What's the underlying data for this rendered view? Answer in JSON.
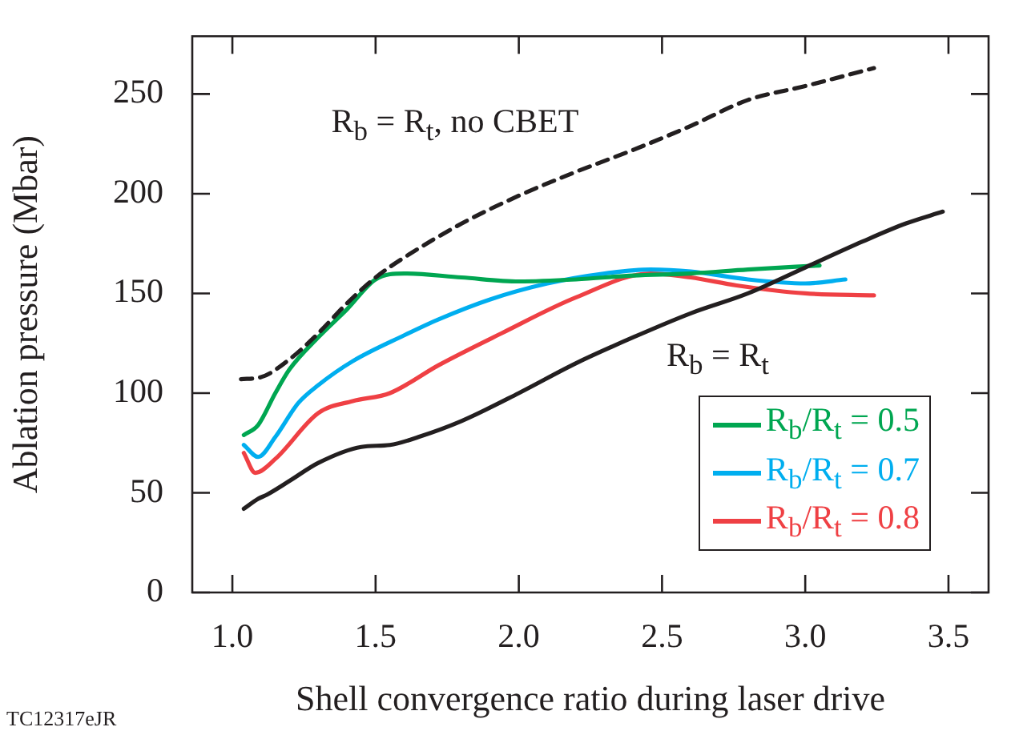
{
  "chart_data": {
    "type": "line",
    "xlabel": "Shell convergence ratio during laser drive",
    "ylabel": "Ablation pressure (Mbar)",
    "xlim": [
      0.86,
      3.64
    ],
    "ylim": [
      0,
      279
    ],
    "xticks": [
      {
        "value": 1,
        "label": "1.0"
      },
      {
        "value": 1.5,
        "label": "1.5"
      },
      {
        "value": 2,
        "label": "2.0"
      },
      {
        "value": 2.5,
        "label": "2.5"
      },
      {
        "value": 3,
        "label": "3.0"
      },
      {
        "value": 3.5,
        "label": "3.5"
      }
    ],
    "yticks": [
      0,
      50,
      100,
      150,
      200,
      250
    ],
    "grid": false,
    "legend": "bottom right",
    "marker": "none",
    "series": [
      {
        "color": "#231f20",
        "line_style": "dashed",
        "x": [
          1.03,
          1.1,
          1.2,
          1.3,
          1.4,
          1.5,
          1.6,
          1.8,
          2.0,
          2.2,
          2.4,
          2.6,
          2.8,
          3.0,
          3.24
        ],
        "values": [
          107,
          108,
          117,
          130,
          145,
          158,
          168,
          185,
          199,
          211,
          222,
          234,
          247,
          254,
          263
        ]
      },
      {
        "color": "#231f20",
        "line_style": "solid",
        "x": [
          1.04,
          1.09,
          1.12,
          1.2,
          1.3,
          1.45,
          1.55,
          1.65,
          1.8,
          2.0,
          2.2,
          2.4,
          2.6,
          2.8,
          3.0,
          3.2,
          3.35,
          3.48
        ],
        "values": [
          42,
          47,
          49,
          56,
          65,
          73,
          74,
          78,
          86,
          100,
          115,
          128,
          140,
          150,
          163,
          176,
          185,
          191
        ]
      },
      {
        "name": "R$_{b}$/R$_{t}$ = 0.5",
        "color": "#00a651",
        "line_style": "solid",
        "x": [
          1.04,
          1.09,
          1.15,
          1.2,
          1.3,
          1.4,
          1.5,
          1.6,
          1.8,
          2.0,
          2.2,
          2.4,
          2.6,
          2.8,
          3.05
        ],
        "values": [
          79,
          84,
          100,
          112,
          128,
          142,
          157,
          160,
          158,
          156,
          157,
          159,
          160,
          162,
          164
        ]
      },
      {
        "name": "R$_{b}$/R$_{t}$ = 0.7",
        "color": "#00aeef",
        "line_style": "solid",
        "x": [
          1.04,
          1.09,
          1.15,
          1.23,
          1.3,
          1.42,
          1.6,
          1.72,
          1.9,
          2.1,
          2.3,
          2.46,
          2.6,
          2.8,
          3.0,
          3.14
        ],
        "values": [
          74,
          68,
          78,
          95,
          104,
          116,
          129,
          137,
          147,
          155,
          160,
          162,
          161,
          157,
          155,
          157
        ]
      },
      {
        "name": "R$_{b}$/R$_{t}$ = 0.8",
        "color": "#ef4044",
        "line_style": "solid",
        "x": [
          1.04,
          1.08,
          1.15,
          1.3,
          1.42,
          1.55,
          1.72,
          1.94,
          2.2,
          2.46,
          2.6,
          2.76,
          3.0,
          3.24
        ],
        "values": [
          70,
          60,
          67,
          90,
          96,
          100,
          114,
          130,
          148,
          160,
          158,
          154,
          150,
          149
        ]
      }
    ],
    "annotations": [
      "R$_{b}$ = R$_{t}$, no CBET",
      "R$_{b}$ = R$_{t}$",
      "TC12317eJR"
    ]
  }
}
